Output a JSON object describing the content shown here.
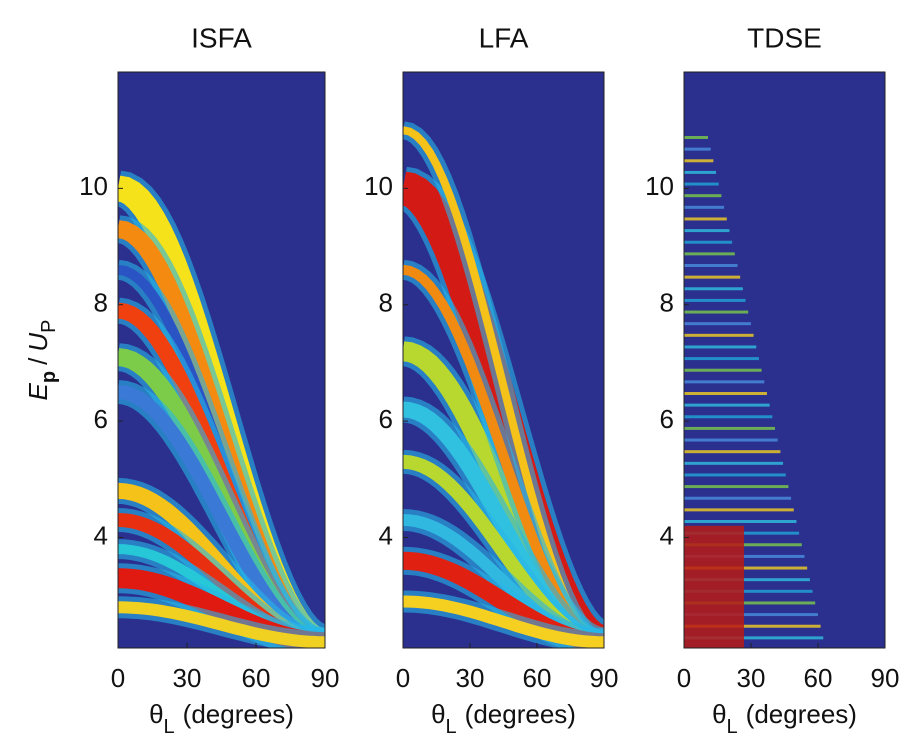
{
  "chart_data": [
    {
      "type": "heatmap",
      "title": "ISFA",
      "xlim": [
        0,
        90
      ],
      "xticks": [
        0,
        30,
        60,
        90
      ],
      "ylim": [
        2.1,
        12
      ],
      "yticks": [
        4,
        6,
        8,
        10
      ],
      "xlabel": {
        "symbol": "θ",
        "subscript": "L",
        "text": "(degrees)"
      },
      "ylabel": {
        "e": "E",
        "e_sub": "p",
        "slash": "/",
        "u": "U",
        "u_sub": "P"
      }
    },
    {
      "type": "heatmap",
      "title": "LFA",
      "xlim": [
        0,
        90
      ],
      "xticks": [
        0,
        30,
        60,
        90
      ],
      "ylim": [
        2.1,
        12
      ],
      "yticks": [
        4,
        6,
        8,
        10
      ],
      "xlabel": {
        "symbol": "θ",
        "subscript": "L",
        "text": "(degrees)"
      }
    },
    {
      "type": "heatmap",
      "title": "TDSE",
      "xlim": [
        0,
        90
      ],
      "xticks": [
        0,
        30,
        60,
        90
      ],
      "ylim": [
        2.1,
        12
      ],
      "yticks": [
        4,
        6,
        8,
        10
      ],
      "xlabel": {
        "symbol": "θ",
        "subscript": "L",
        "text": "(degrees)"
      }
    }
  ]
}
